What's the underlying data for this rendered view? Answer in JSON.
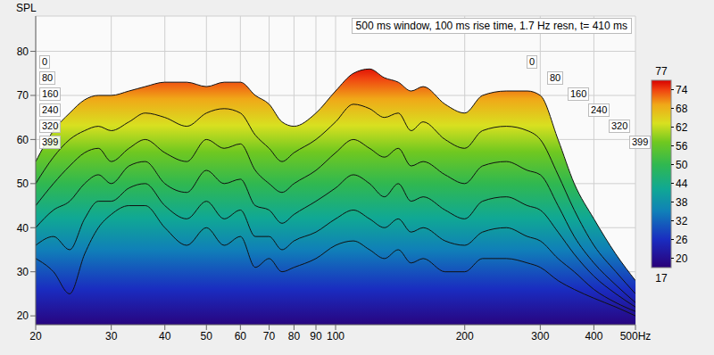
{
  "chart_data": {
    "type": "area",
    "title": "500 ms window, 100 ms rise time, 1.7 Hz resn, t= 410 ms",
    "y_label": "SPL",
    "log": "x",
    "grid": true,
    "xlim": [
      20,
      500
    ],
    "xticks": [
      20,
      30,
      40,
      50,
      60,
      70,
      80,
      90,
      100,
      200,
      300,
      400,
      {
        "value": 500,
        "label": "500Hz"
      }
    ],
    "ylim": [
      18,
      88
    ],
    "yticks": [
      20,
      30,
      40,
      50,
      60,
      70,
      80
    ],
    "x": [
      20,
      22,
      24,
      26,
      28,
      30,
      33,
      36,
      40,
      45,
      50,
      55,
      60,
      65,
      70,
      75,
      80,
      90,
      100,
      110,
      120,
      130,
      140,
      150,
      160,
      180,
      200,
      220,
      250,
      280,
      300,
      330,
      360,
      400,
      450,
      500
    ],
    "series": [
      {
        "name": "0",
        "values": [
          55,
          62,
          66,
          69,
          70,
          70,
          71,
          72,
          73,
          73,
          72,
          73,
          73,
          70,
          68,
          64,
          63,
          66,
          71,
          75,
          76,
          74,
          73,
          71,
          72,
          68,
          66,
          70,
          71,
          71,
          70,
          60,
          50,
          42,
          34,
          28
        ]
      },
      {
        "name": "80",
        "values": [
          50,
          56,
          60,
          62,
          63,
          62,
          64,
          66,
          65,
          63,
          66,
          67,
          66,
          61,
          58,
          55,
          57,
          60,
          64,
          68,
          67,
          65,
          66,
          62,
          64,
          60,
          58,
          62,
          63,
          62,
          60,
          52,
          44,
          36,
          30,
          25
        ]
      },
      {
        "name": "160",
        "values": [
          45,
          50,
          54,
          57,
          58,
          55,
          58,
          60,
          57,
          55,
          60,
          58,
          59,
          53,
          50,
          48,
          50,
          53,
          57,
          60,
          58,
          56,
          58,
          54,
          55,
          52,
          50,
          54,
          55,
          53,
          52,
          45,
          38,
          32,
          27,
          23
        ]
      },
      {
        "name": "240",
        "values": [
          40,
          44,
          46,
          50,
          52,
          50,
          54,
          55,
          50,
          48,
          53,
          50,
          51,
          45,
          44,
          41,
          43,
          46,
          49,
          52,
          50,
          47,
          50,
          46,
          47,
          44,
          42,
          46,
          47,
          45,
          44,
          39,
          34,
          29,
          25,
          22
        ]
      },
      {
        "name": "320",
        "values": [
          36,
          38,
          35,
          42,
          46,
          46,
          49,
          50,
          45,
          42,
          46,
          42,
          44,
          38,
          38,
          35,
          37,
          39,
          42,
          44,
          42,
          40,
          42,
          39,
          40,
          37,
          36,
          39,
          40,
          38,
          37,
          33,
          30,
          26,
          23,
          21
        ]
      },
      {
        "name": "399",
        "values": [
          33,
          30,
          25,
          34,
          40,
          43,
          45,
          45,
          40,
          36,
          40,
          36,
          38,
          31,
          33,
          30,
          31,
          33,
          36,
          37,
          35,
          33,
          35,
          32,
          33,
          30,
          30,
          33,
          33,
          32,
          31,
          28,
          26,
          24,
          22,
          20
        ]
      }
    ],
    "colorbar": {
      "range": [
        17,
        77
      ],
      "ticks": [
        20,
        26,
        32,
        38,
        44,
        50,
        56,
        62,
        68,
        74
      ]
    }
  }
}
